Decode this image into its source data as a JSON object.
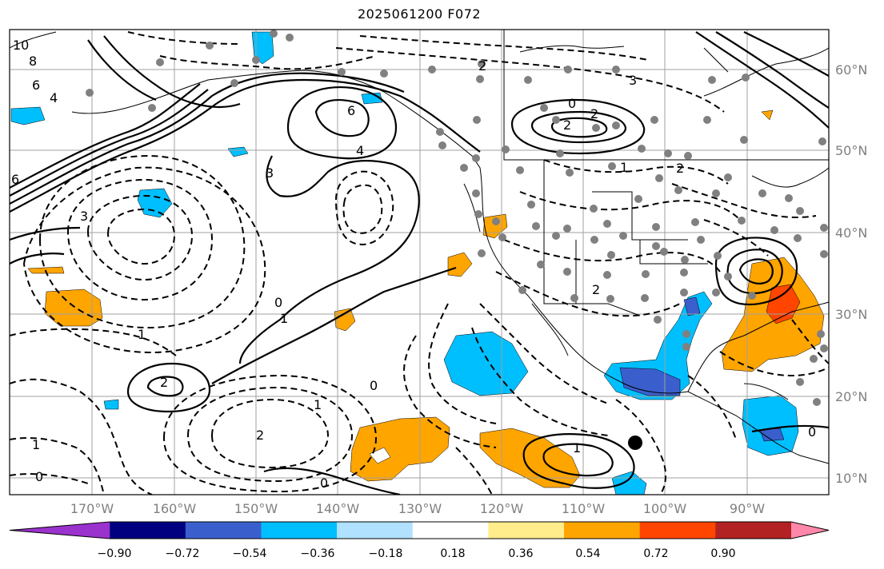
{
  "title": "2025061200 F072",
  "lon_labels": [
    "170°W",
    "160°W",
    "150°W",
    "140°W",
    "130°W",
    "120°W",
    "110°W",
    "100°W",
    "90°W"
  ],
  "lat_labels": [
    "60°N",
    "50°N",
    "40°N",
    "30°N",
    "20°N",
    "10°N"
  ],
  "colorbar": {
    "tick_labels": [
      "−0.90",
      "−0.72",
      "−0.54",
      "−0.36",
      "−0.18",
      "0.18",
      "0.36",
      "0.54",
      "0.72",
      "0.90"
    ],
    "colors": [
      "#9a32cd",
      "#000080",
      "#3a5fcd",
      "#00bfff",
      "#b0e2ff",
      "#ffffff",
      "#ffec8b",
      "#ffa500",
      "#ff4500",
      "#b22222",
      "#ff88aa"
    ]
  },
  "contour_labels": {
    "solid": [
      "0",
      "0",
      "0",
      "1",
      "1",
      "2",
      "2",
      "2",
      "3",
      "4",
      "4",
      "6",
      "6",
      "6",
      "8",
      "10"
    ],
    "dashed": [
      "0",
      "0",
      "0",
      "1",
      "1",
      "1",
      "1",
      "2",
      "2",
      "2",
      "2",
      "3",
      "3"
    ]
  },
  "legend_note": "",
  "colors": {
    "axis_grid": "#808080",
    "coast": "#000000"
  }
}
